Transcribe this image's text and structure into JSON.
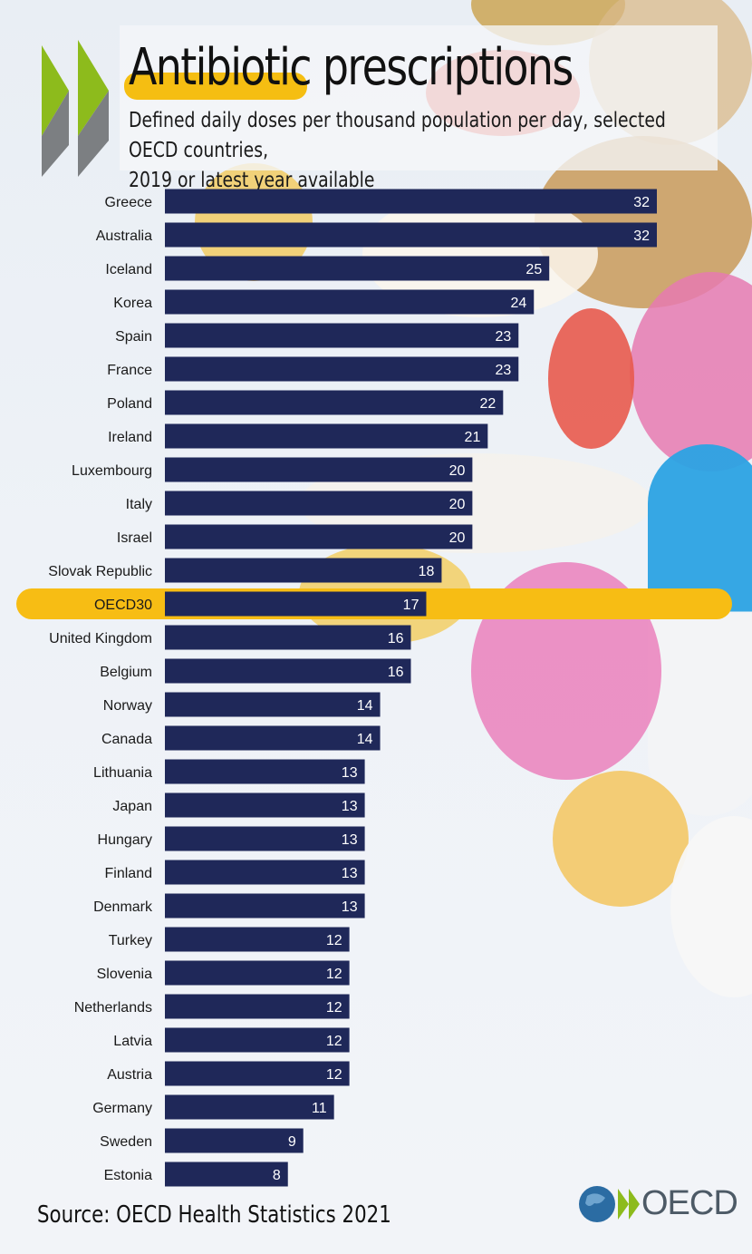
{
  "header": {
    "title": "Antibiotic prescriptions",
    "subtitle_line1": "Defined daily doses per thousand population per day, selected OECD countries,",
    "subtitle_line2": "2019 or latest year available"
  },
  "footer": {
    "source": "Source: OECD Health Statistics 2021",
    "logo_text": "OECD"
  },
  "colors": {
    "bar": "#1f2859",
    "highlight": "#f7bd14",
    "chevron_green": "#8dbb1c",
    "chevron_gray": "#7c7f82"
  },
  "chart_data": {
    "type": "bar",
    "orientation": "horizontal",
    "title": "Antibiotic prescriptions",
    "subtitle": "Defined daily doses per thousand population per day, selected OECD countries, 2019 or latest year available",
    "highlight_category": "OECD30",
    "xlim": [
      0,
      32
    ],
    "categories": [
      "Greece",
      "Australia",
      "Iceland",
      "Korea",
      "Spain",
      "France",
      "Poland",
      "Ireland",
      "Luxembourg",
      "Italy",
      "Israel",
      "Slovak Republic",
      "OECD30",
      "United Kingdom",
      "Belgium",
      "Norway",
      "Canada",
      "Lithuania",
      "Japan",
      "Hungary",
      "Finland",
      "Denmark",
      "Turkey",
      "Slovenia",
      "Netherlands",
      "Latvia",
      "Austria",
      "Germany",
      "Sweden",
      "Estonia"
    ],
    "values": [
      32,
      32,
      25,
      24,
      23,
      23,
      22,
      21,
      20,
      20,
      20,
      18,
      17,
      16,
      16,
      14,
      14,
      13,
      13,
      13,
      13,
      13,
      12,
      12,
      12,
      12,
      12,
      11,
      9,
      8
    ]
  }
}
